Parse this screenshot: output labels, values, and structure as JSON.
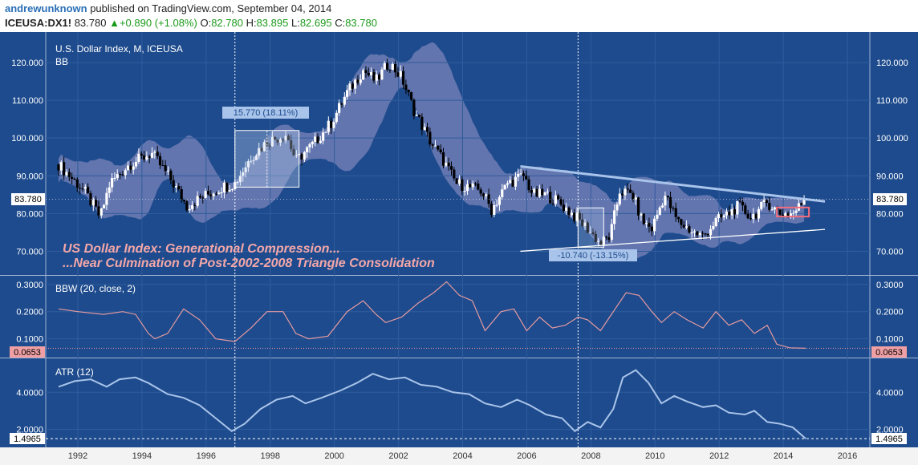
{
  "header": {
    "user": "andrewunknown",
    "published": "published on TradingView.com, September 04, 2014",
    "symbol": "ICEUSA:DX1!",
    "last": "83.780",
    "change": "+0.890 (+1.08%)",
    "o_label": "O:",
    "o_val": "82.780",
    "h_label": "H:",
    "h_val": "83.895",
    "l_label": "L:",
    "l_val": "82.695",
    "c_label": "C:",
    "c_val": "83.780"
  },
  "colors": {
    "background": "#1e4b8d",
    "band_fill": "#6e7cb5",
    "candle_up": "#ffffff",
    "candle_down": "#000000",
    "trendline": "#a9c4ea",
    "bbw_line": "#e59aa0",
    "atr_line": "#a9c4ea",
    "annotation_text": "#f4a7a9"
  },
  "chart_data": [
    {
      "type": "candlestick",
      "title": "U.S. Dollar Index, M, ICEUSA",
      "indicator": "BB",
      "x_ticks": [
        "1992",
        "1994",
        "1996",
        "1998",
        "2000",
        "2002",
        "2004",
        "2006",
        "2008",
        "2010",
        "2012",
        "2014",
        "2016"
      ],
      "y_ticks": [
        "70.000",
        "80.000",
        "90.000",
        "100.000",
        "110.000",
        "120.000"
      ],
      "ylim": [
        65,
        127
      ],
      "last_price_label": "83.780",
      "close_path": [
        [
          1991.4,
          93
        ],
        [
          1992.2,
          86
        ],
        [
          1992.7,
          79
        ],
        [
          1993.0,
          88
        ],
        [
          1993.6,
          93
        ],
        [
          1994.3,
          96
        ],
        [
          1994.9,
          89
        ],
        [
          1995.4,
          82
        ],
        [
          1995.8,
          84
        ],
        [
          1996.5,
          87
        ],
        [
          1996.9,
          88
        ],
        [
          1997.4,
          95
        ],
        [
          1997.9,
          99
        ],
        [
          1998.5,
          101
        ],
        [
          1998.8,
          94
        ],
        [
          1999.3,
          98
        ],
        [
          1999.9,
          104
        ],
        [
          2000.4,
          112
        ],
        [
          2000.9,
          118
        ],
        [
          2001.3,
          115
        ],
        [
          2001.7,
          120
        ],
        [
          2002.1,
          116
        ],
        [
          2002.5,
          107
        ],
        [
          2003.0,
          99
        ],
        [
          2003.4,
          94
        ],
        [
          2003.8,
          88
        ],
        [
          2004.2,
          87
        ],
        [
          2004.6,
          86
        ],
        [
          2004.9,
          81
        ],
        [
          2005.4,
          88
        ],
        [
          2005.9,
          90
        ],
        [
          2006.2,
          85
        ],
        [
          2006.6,
          85
        ],
        [
          2007.0,
          83
        ],
        [
          2007.4,
          80
        ],
        [
          2007.9,
          76
        ],
        [
          2008.3,
          72
        ],
        [
          2008.6,
          74
        ],
        [
          2008.9,
          86
        ],
        [
          2009.3,
          85
        ],
        [
          2009.6,
          78
        ],
        [
          2009.9,
          76
        ],
        [
          2010.3,
          85
        ],
        [
          2010.7,
          78
        ],
        [
          2011.2,
          75
        ],
        [
          2011.5,
          74
        ],
        [
          2011.9,
          78
        ],
        [
          2012.3,
          80
        ],
        [
          2012.6,
          82
        ],
        [
          2013.0,
          79
        ],
        [
          2013.5,
          83
        ],
        [
          2013.9,
          80
        ],
        [
          2014.3,
          80
        ],
        [
          2014.7,
          83.78
        ]
      ],
      "annotations": [
        {
          "text": "15.770 (18.11%)"
        },
        {
          "text": "-10.740 (-13.15%)"
        },
        {
          "text": "US Dollar Index: Generational Compression..."
        },
        {
          "text": "...Near Culmination of Post-2002-2008 Triangle Consolidation"
        }
      ]
    },
    {
      "type": "line",
      "title": "BBW (20, close, 2)",
      "y_ticks": [
        "0.1000",
        "0.2000",
        "0.3000"
      ],
      "ylim": [
        0.04,
        0.32
      ],
      "last_value_label": "0.0653",
      "series": [
        {
          "values": [
            [
              1991.4,
              0.21
            ],
            [
              1992.0,
              0.2
            ],
            [
              1992.8,
              0.19
            ],
            [
              1993.4,
              0.2
            ],
            [
              1993.8,
              0.19
            ],
            [
              1994.2,
              0.12
            ],
            [
              1994.4,
              0.1
            ],
            [
              1994.8,
              0.12
            ],
            [
              1995.3,
              0.21
            ],
            [
              1995.8,
              0.17
            ],
            [
              1996.3,
              0.1
            ],
            [
              1996.9,
              0.09
            ],
            [
              1997.4,
              0.14
            ],
            [
              1997.9,
              0.2
            ],
            [
              1998.4,
              0.2
            ],
            [
              1998.8,
              0.12
            ],
            [
              1999.2,
              0.1
            ],
            [
              1999.8,
              0.11
            ],
            [
              2000.4,
              0.2
            ],
            [
              2000.9,
              0.24
            ],
            [
              2001.3,
              0.19
            ],
            [
              2001.6,
              0.16
            ],
            [
              2002.1,
              0.18
            ],
            [
              2002.6,
              0.23
            ],
            [
              2003.1,
              0.27
            ],
            [
              2003.5,
              0.31
            ],
            [
              2003.9,
              0.26
            ],
            [
              2004.3,
              0.24
            ],
            [
              2004.7,
              0.13
            ],
            [
              2005.2,
              0.2
            ],
            [
              2005.6,
              0.21
            ],
            [
              2006.0,
              0.13
            ],
            [
              2006.4,
              0.18
            ],
            [
              2006.8,
              0.14
            ],
            [
              2007.2,
              0.15
            ],
            [
              2007.6,
              0.18
            ],
            [
              2007.9,
              0.17
            ],
            [
              2008.3,
              0.13
            ],
            [
              2008.7,
              0.2
            ],
            [
              2009.1,
              0.27
            ],
            [
              2009.5,
              0.26
            ],
            [
              2009.9,
              0.2
            ],
            [
              2010.2,
              0.16
            ],
            [
              2010.6,
              0.2
            ],
            [
              2011.0,
              0.17
            ],
            [
              2011.5,
              0.14
            ],
            [
              2011.9,
              0.2
            ],
            [
              2012.3,
              0.15
            ],
            [
              2012.7,
              0.17
            ],
            [
              2013.1,
              0.12
            ],
            [
              2013.5,
              0.15
            ],
            [
              2013.8,
              0.08
            ],
            [
              2014.2,
              0.067
            ],
            [
              2014.7,
              0.0653
            ]
          ]
        }
      ]
    },
    {
      "type": "line",
      "title": "ATR (12)",
      "y_ticks": [
        "2.0000",
        "4.0000"
      ],
      "ylim": [
        1.2,
        5.7
      ],
      "last_value_label": "1.4965",
      "series": [
        {
          "values": [
            [
              1991.4,
              4.3
            ],
            [
              1991.9,
              4.6
            ],
            [
              1992.4,
              4.7
            ],
            [
              1992.9,
              4.3
            ],
            [
              1993.3,
              4.7
            ],
            [
              1993.8,
              4.8
            ],
            [
              1994.2,
              4.5
            ],
            [
              1994.8,
              3.9
            ],
            [
              1995.3,
              3.7
            ],
            [
              1995.8,
              3.3
            ],
            [
              1996.3,
              2.6
            ],
            [
              1996.8,
              1.9
            ],
            [
              1997.2,
              2.3
            ],
            [
              1997.7,
              3.1
            ],
            [
              1998.2,
              3.6
            ],
            [
              1998.7,
              3.8
            ],
            [
              1999.1,
              3.4
            ],
            [
              1999.6,
              3.7
            ],
            [
              2000.2,
              4.1
            ],
            [
              2000.7,
              4.5
            ],
            [
              2001.2,
              5.0
            ],
            [
              2001.7,
              4.7
            ],
            [
              2002.2,
              4.8
            ],
            [
              2002.7,
              4.4
            ],
            [
              2003.2,
              4.3
            ],
            [
              2003.7,
              4.0
            ],
            [
              2004.2,
              3.9
            ],
            [
              2004.7,
              3.4
            ],
            [
              2005.2,
              3.2
            ],
            [
              2005.7,
              3.6
            ],
            [
              2006.1,
              3.3
            ],
            [
              2006.6,
              2.8
            ],
            [
              2007.1,
              2.6
            ],
            [
              2007.5,
              1.9
            ],
            [
              2007.9,
              2.4
            ],
            [
              2008.3,
              2.1
            ],
            [
              2008.7,
              3.1
            ],
            [
              2009.0,
              4.8
            ],
            [
              2009.4,
              5.2
            ],
            [
              2009.8,
              4.5
            ],
            [
              2010.2,
              3.4
            ],
            [
              2010.6,
              3.8
            ],
            [
              2011.0,
              3.5
            ],
            [
              2011.5,
              3.2
            ],
            [
              2011.9,
              3.3
            ],
            [
              2012.3,
              2.9
            ],
            [
              2012.8,
              2.8
            ],
            [
              2013.1,
              3.0
            ],
            [
              2013.5,
              2.4
            ],
            [
              2013.9,
              2.3
            ],
            [
              2014.3,
              2.1
            ],
            [
              2014.7,
              1.4965
            ]
          ]
        }
      ]
    }
  ]
}
